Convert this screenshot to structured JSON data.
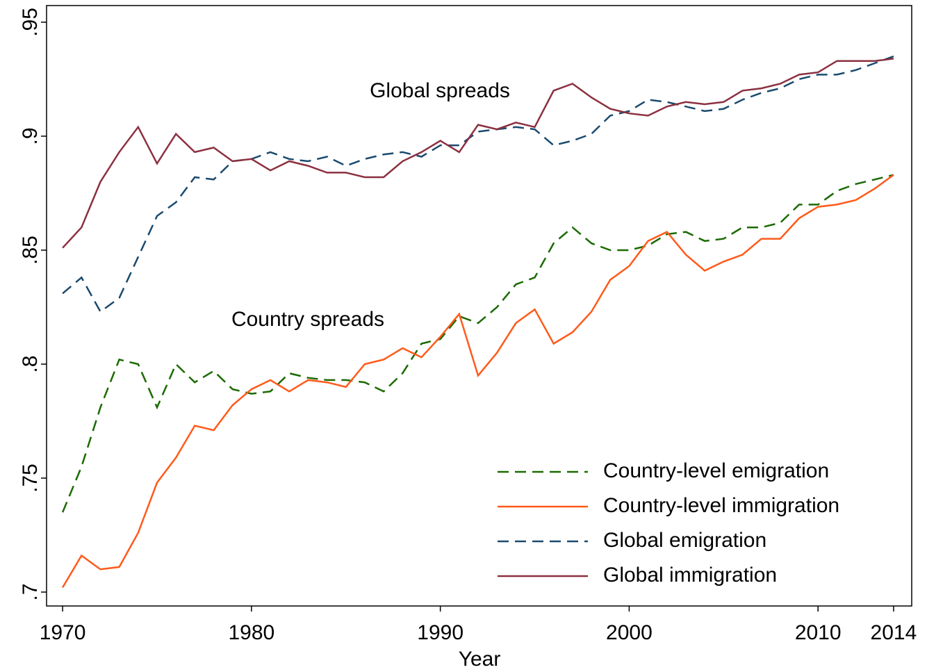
{
  "chart_data": {
    "type": "line",
    "x_label": "Year",
    "x": [
      1970,
      1971,
      1972,
      1973,
      1974,
      1975,
      1976,
      1977,
      1978,
      1979,
      1980,
      1981,
      1982,
      1983,
      1984,
      1985,
      1986,
      1987,
      1988,
      1989,
      1990,
      1991,
      1992,
      1993,
      1994,
      1995,
      1996,
      1997,
      1998,
      1999,
      2000,
      2001,
      2002,
      2003,
      2004,
      2005,
      2006,
      2007,
      2008,
      2009,
      2010,
      2011,
      2012,
      2013,
      2014
    ],
    "series": [
      {
        "name": "Country-level emigration",
        "color": "#1a6a00",
        "style": "dashed",
        "values": [
          0.735,
          0.755,
          0.781,
          0.802,
          0.8,
          0.781,
          0.8,
          0.792,
          0.797,
          0.789,
          0.787,
          0.788,
          0.796,
          0.794,
          0.793,
          0.793,
          0.792,
          0.788,
          0.796,
          0.809,
          0.811,
          0.821,
          0.818,
          0.825,
          0.835,
          0.838,
          0.853,
          0.86,
          0.853,
          0.85,
          0.85,
          0.852,
          0.857,
          0.858,
          0.854,
          0.855,
          0.86,
          0.86,
          0.862,
          0.87,
          0.87,
          0.876,
          0.879,
          0.881,
          0.883
        ]
      },
      {
        "name": "Country-level immigration",
        "color": "#ff5a1a",
        "style": "solid",
        "values": [
          0.702,
          0.716,
          0.71,
          0.711,
          0.726,
          0.748,
          0.759,
          0.773,
          0.771,
          0.782,
          0.789,
          0.793,
          0.788,
          0.793,
          0.792,
          0.79,
          0.8,
          0.802,
          0.807,
          0.803,
          0.812,
          0.822,
          0.795,
          0.805,
          0.818,
          0.824,
          0.809,
          0.814,
          0.823,
          0.837,
          0.843,
          0.854,
          0.858,
          0.848,
          0.841,
          0.845,
          0.848,
          0.855,
          0.855,
          0.864,
          0.869,
          0.87,
          0.872,
          0.877,
          0.883
        ]
      },
      {
        "name": "Global emigration",
        "color": "#1a4a6e",
        "style": "dashed",
        "values": [
          0.831,
          0.838,
          0.823,
          0.829,
          0.847,
          0.865,
          0.871,
          0.882,
          0.881,
          0.889,
          0.89,
          0.893,
          0.89,
          0.889,
          0.891,
          0.887,
          0.89,
          0.892,
          0.893,
          0.891,
          0.896,
          0.896,
          0.902,
          0.903,
          0.904,
          0.903,
          0.896,
          0.898,
          0.901,
          0.909,
          0.911,
          0.916,
          0.915,
          0.913,
          0.911,
          0.912,
          0.916,
          0.919,
          0.921,
          0.925,
          0.927,
          0.927,
          0.929,
          0.932,
          0.935
        ]
      },
      {
        "name": "Global immigration",
        "color": "#8b3040",
        "style": "solid",
        "values": [
          0.851,
          0.86,
          0.88,
          0.893,
          0.904,
          0.888,
          0.901,
          0.893,
          0.895,
          0.889,
          0.89,
          0.885,
          0.889,
          0.887,
          0.884,
          0.884,
          0.882,
          0.882,
          0.889,
          0.893,
          0.898,
          0.893,
          0.905,
          0.903,
          0.906,
          0.904,
          0.92,
          0.923,
          0.917,
          0.912,
          0.91,
          0.909,
          0.913,
          0.915,
          0.914,
          0.915,
          0.92,
          0.921,
          0.923,
          0.927,
          0.928,
          0.933,
          0.933,
          0.933,
          0.934
        ]
      }
    ],
    "annotations": [
      "Global spreads",
      "Country spreads"
    ],
    "xlim": [
      1969.15,
      2014.96
    ],
    "xticks": [
      1970,
      1980,
      1990,
      2000,
      2010,
      2014
    ],
    "ylim": [
      0.6939,
      0.9573
    ],
    "yticks": [
      {
        "value": 0.7,
        "label": ".7"
      },
      {
        "value": 0.75,
        "label": ".75"
      },
      {
        "value": 0.8,
        "label": ".8"
      },
      {
        "value": 0.85,
        "label": ".85"
      },
      {
        "value": 0.9,
        "label": ".9"
      },
      {
        "value": 0.95,
        "label": ".95"
      }
    ],
    "grid": false,
    "legend": "lower right"
  }
}
